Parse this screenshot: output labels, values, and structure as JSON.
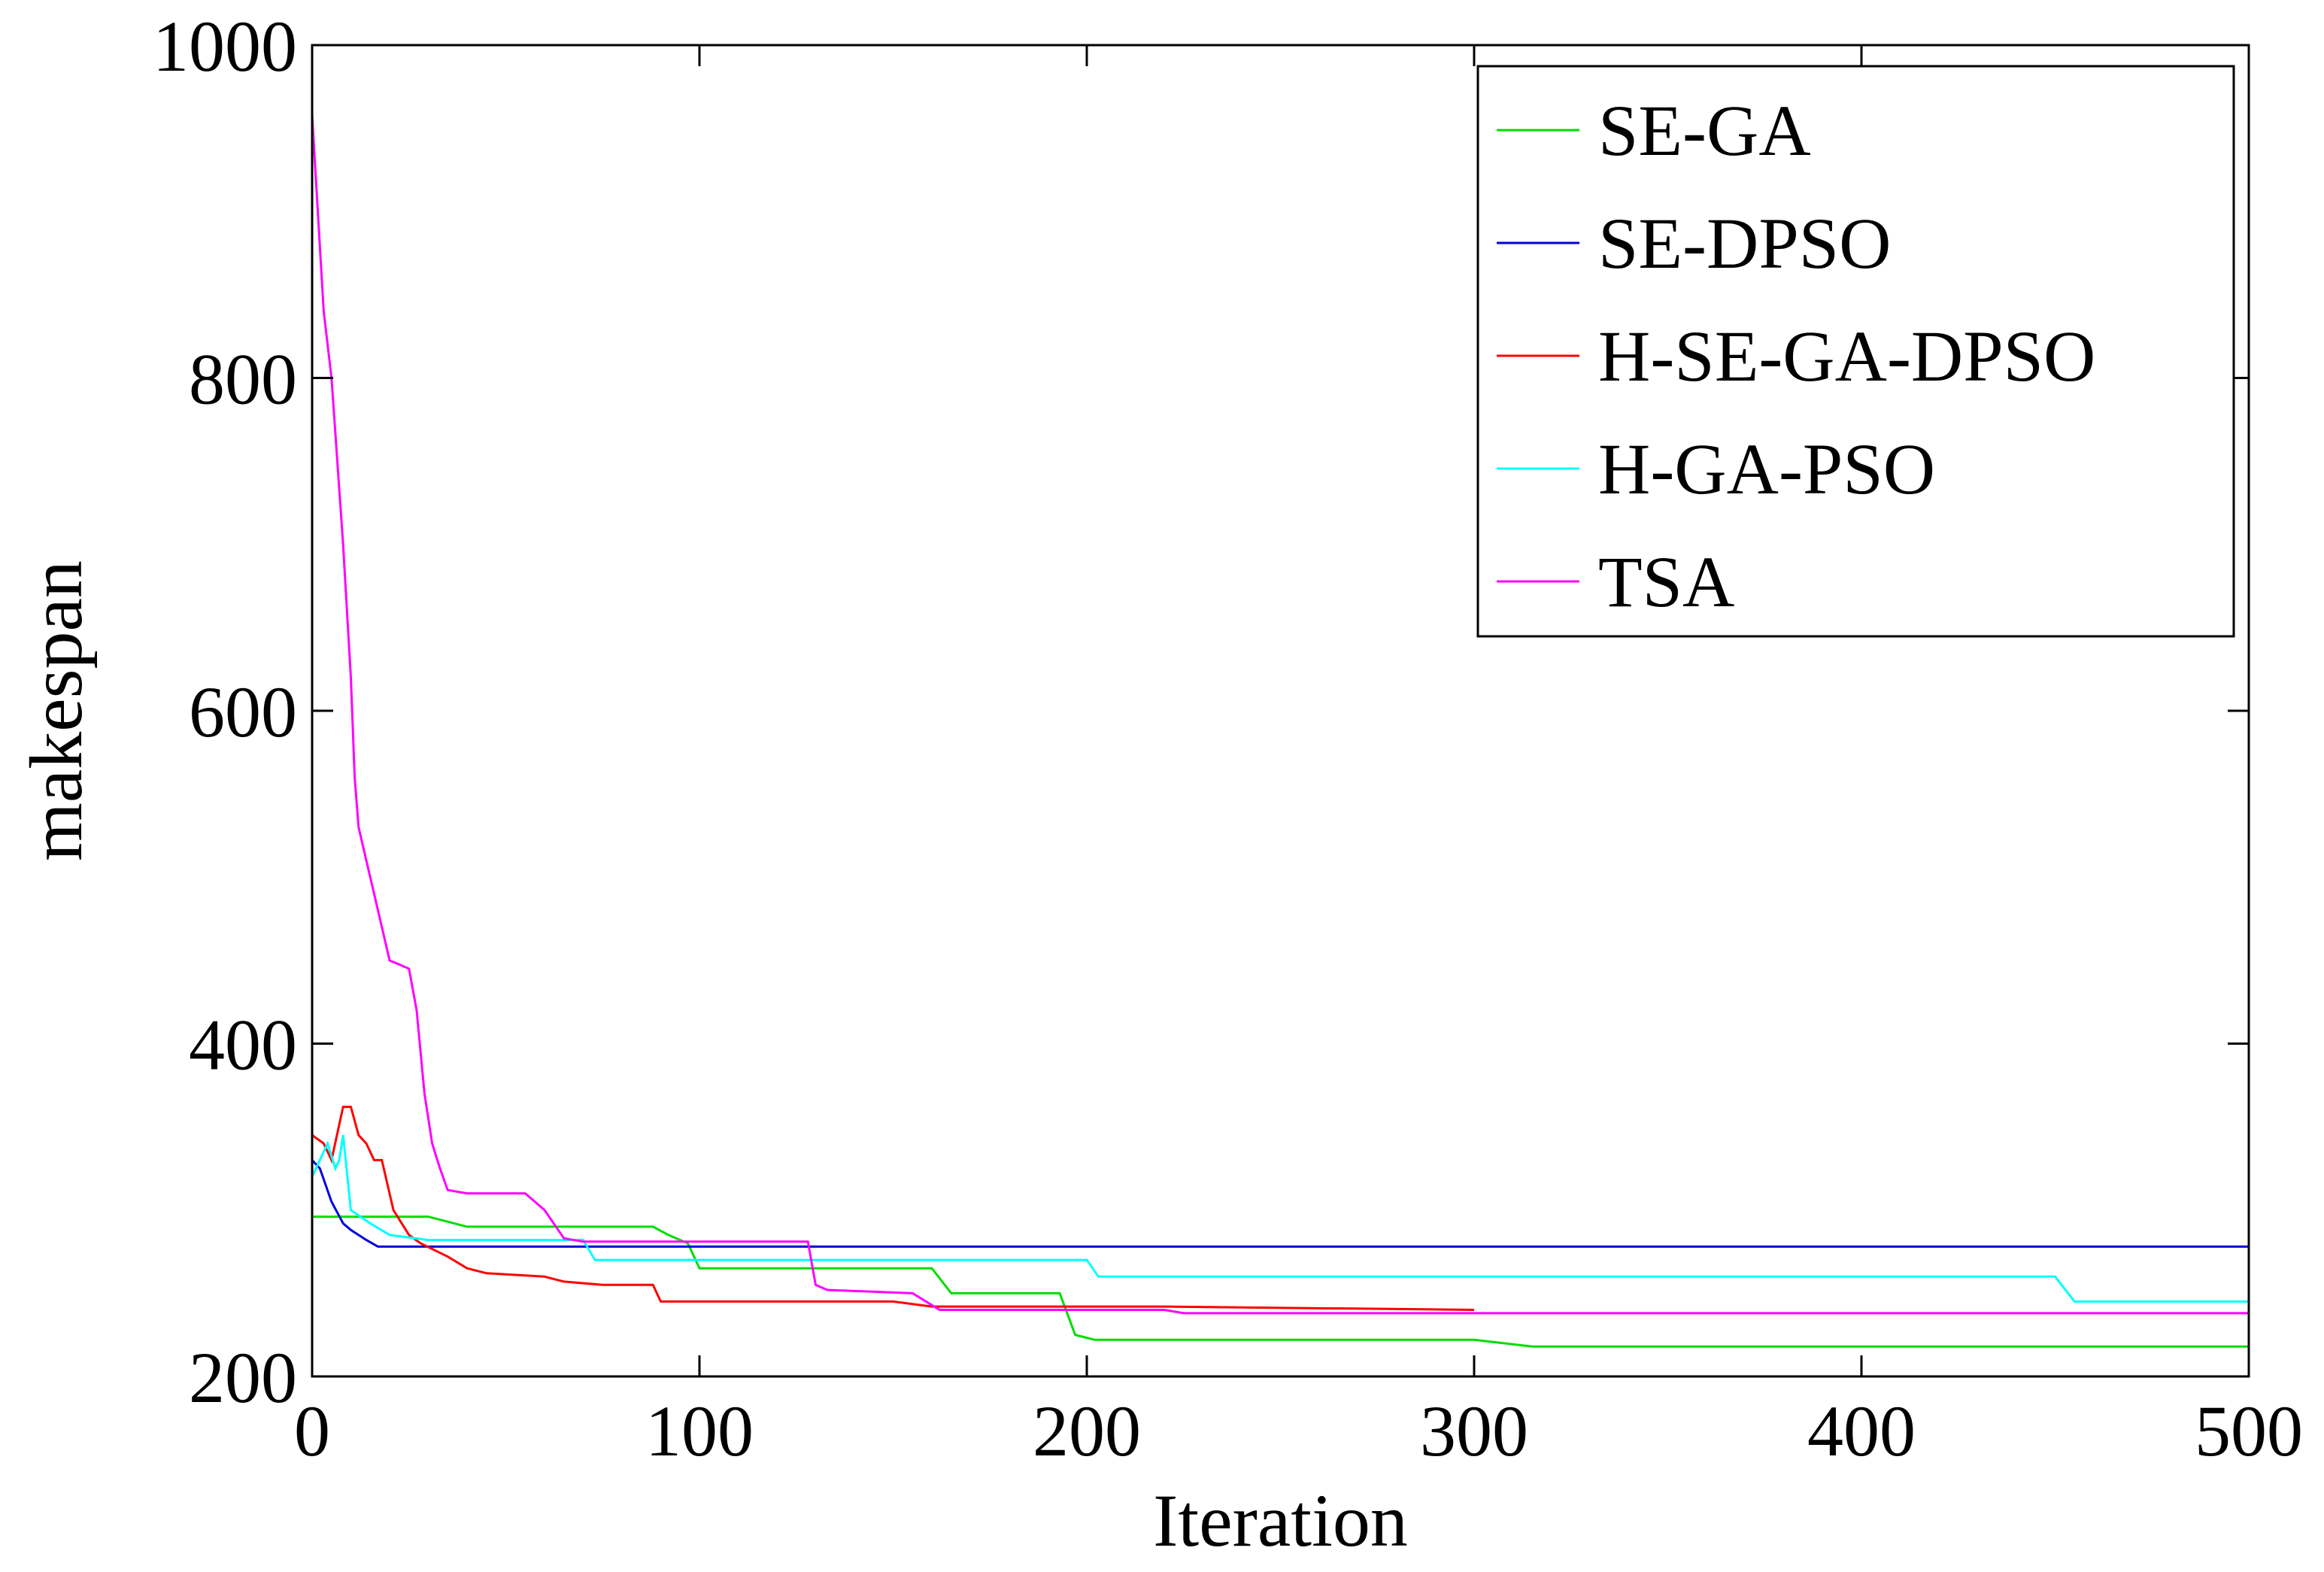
{
  "chart_data": {
    "type": "line",
    "title": "",
    "xlabel": "Iteration",
    "ylabel": "makespan",
    "xlim": [
      0,
      500
    ],
    "ylim": [
      200,
      1000
    ],
    "xticks": [
      "0",
      "100",
      "200",
      "300",
      "400",
      "500"
    ],
    "yticks": [
      "200",
      "400",
      "600",
      "800",
      "1000"
    ],
    "grid": false,
    "legend_position": "top-right",
    "series": [
      {
        "name": "SE-GA",
        "color": "#00dd00",
        "points": [
          [
            0,
            296
          ],
          [
            30,
            296
          ],
          [
            40,
            290
          ],
          [
            88,
            290
          ],
          [
            92,
            285
          ],
          [
            97,
            280
          ],
          [
            100,
            265
          ],
          [
            160,
            265
          ],
          [
            165,
            250
          ],
          [
            180,
            250
          ],
          [
            193,
            250
          ],
          [
            197,
            225
          ],
          [
            202,
            222
          ],
          [
            300,
            222
          ],
          [
            315,
            218
          ],
          [
            500,
            218
          ]
        ]
      },
      {
        "name": "SE-DPSO",
        "color": "#0000dd",
        "points": [
          [
            0,
            330
          ],
          [
            2,
            325
          ],
          [
            5,
            305
          ],
          [
            8,
            292
          ],
          [
            10,
            288
          ],
          [
            14,
            282
          ],
          [
            17,
            278
          ],
          [
            25,
            278
          ],
          [
            500,
            278
          ]
        ]
      },
      {
        "name": "H-SE-GA-DPSO",
        "color": "#ff0000",
        "points": [
          [
            0,
            345
          ],
          [
            3,
            340
          ],
          [
            5,
            330
          ],
          [
            8,
            362
          ],
          [
            10,
            362
          ],
          [
            12,
            345
          ],
          [
            14,
            340
          ],
          [
            16,
            330
          ],
          [
            18,
            330
          ],
          [
            21,
            300
          ],
          [
            25,
            285
          ],
          [
            28,
            280
          ],
          [
            35,
            272
          ],
          [
            40,
            265
          ],
          [
            45,
            262
          ],
          [
            60,
            260
          ],
          [
            65,
            257
          ],
          [
            75,
            255
          ],
          [
            88,
            255
          ],
          [
            90,
            245
          ],
          [
            150,
            245
          ],
          [
            160,
            242
          ],
          [
            220,
            242
          ],
          [
            300,
            240
          ]
        ]
      },
      {
        "name": "H-GA-PSO",
        "color": "#00ffff",
        "points": [
          [
            0,
            320
          ],
          [
            2,
            330
          ],
          [
            4,
            340
          ],
          [
            6,
            325
          ],
          [
            7,
            330
          ],
          [
            8,
            345
          ],
          [
            10,
            300
          ],
          [
            15,
            292
          ],
          [
            20,
            285
          ],
          [
            30,
            282
          ],
          [
            70,
            282
          ],
          [
            73,
            270
          ],
          [
            195,
            270
          ],
          [
            200,
            270
          ],
          [
            203,
            260
          ],
          [
            450,
            260
          ],
          [
            455,
            245
          ],
          [
            500,
            245
          ]
        ]
      },
      {
        "name": "TSA",
        "color": "#ff00ff",
        "points": [
          [
            0,
            958
          ],
          [
            3,
            840
          ],
          [
            5,
            800
          ],
          [
            8,
            700
          ],
          [
            10,
            620
          ],
          [
            11,
            560
          ],
          [
            12,
            530
          ],
          [
            14,
            510
          ],
          [
            17,
            480
          ],
          [
            20,
            450
          ],
          [
            22,
            448
          ],
          [
            25,
            445
          ],
          [
            27,
            420
          ],
          [
            29,
            370
          ],
          [
            31,
            340
          ],
          [
            33,
            325
          ],
          [
            35,
            312
          ],
          [
            40,
            310
          ],
          [
            55,
            310
          ],
          [
            60,
            300
          ],
          [
            65,
            283
          ],
          [
            70,
            281
          ],
          [
            128,
            281
          ],
          [
            130,
            255
          ],
          [
            133,
            252
          ],
          [
            155,
            250
          ],
          [
            162,
            240
          ],
          [
            220,
            240
          ],
          [
            225,
            238
          ],
          [
            500,
            238
          ]
        ]
      }
    ]
  }
}
